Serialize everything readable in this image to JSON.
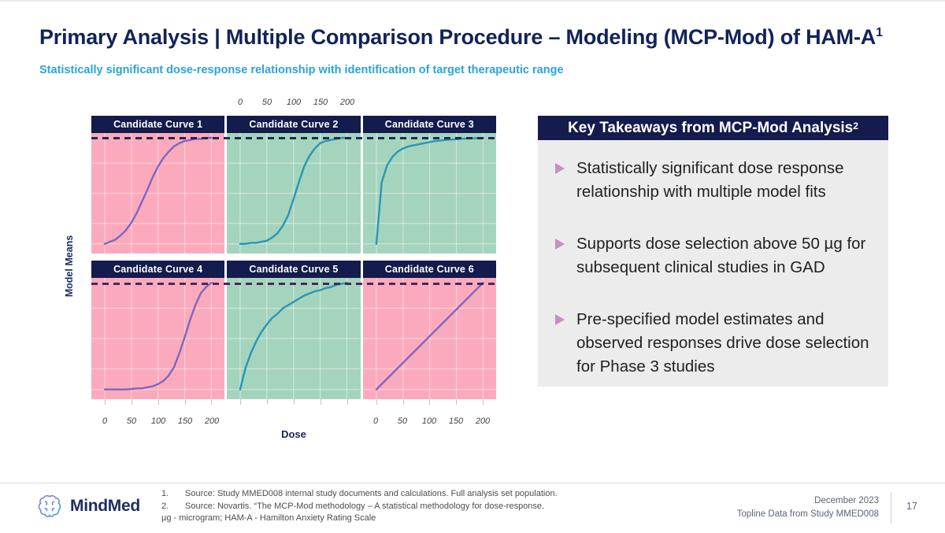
{
  "slide": {
    "title": "Primary Analysis | Multiple Comparison Procedure – Modeling (MCP-Mod) of HAM-A",
    "title_sup": "1",
    "subtitle": "Statistically significant dose-response relationship with identification of target therapeutic range"
  },
  "chart": {
    "y_axis_label": "Model Means",
    "x_axis_label": "Dose",
    "top_axis_ticks": [
      "0",
      "50",
      "100",
      "150",
      "200"
    ],
    "bottom_axis_ticks": [
      "0",
      "50",
      "100",
      "150",
      "200"
    ]
  },
  "chart_data": {
    "type": "line",
    "layout": "2x3_faceted_panels",
    "title": "",
    "xlabel": "Dose",
    "ylabel": "Model Means",
    "x_ticks": [
      0,
      50,
      100,
      150,
      200
    ],
    "x": [
      0,
      10,
      20,
      30,
      40,
      50,
      60,
      70,
      80,
      90,
      100,
      110,
      120,
      130,
      140,
      150,
      160,
      170,
      180,
      190,
      200
    ],
    "dashed_reference_line": "top of each panel row (maximum model response)",
    "grid": true,
    "series": [
      {
        "name": "Candidate Curve 1",
        "panel_bg": "#fbaabc",
        "line_color": "#7a68c1",
        "values": [
          0,
          0.02,
          0.04,
          0.08,
          0.13,
          0.2,
          0.29,
          0.4,
          0.51,
          0.63,
          0.73,
          0.81,
          0.87,
          0.92,
          0.95,
          0.97,
          0.98,
          0.99,
          0.99,
          1,
          1
        ]
      },
      {
        "name": "Candidate Curve 2",
        "panel_bg": "#a5d4bd",
        "line_color": "#2a96b5",
        "values": [
          0,
          0,
          0.01,
          0.01,
          0.02,
          0.03,
          0.06,
          0.1,
          0.17,
          0.27,
          0.42,
          0.58,
          0.73,
          0.83,
          0.9,
          0.95,
          0.97,
          0.98,
          0.99,
          1,
          1
        ]
      },
      {
        "name": "Candidate Curve 3",
        "panel_bg": "#a5d4bd",
        "line_color": "#2a96b5",
        "values": [
          0,
          0.58,
          0.74,
          0.82,
          0.87,
          0.9,
          0.92,
          0.93,
          0.94,
          0.95,
          0.96,
          0.97,
          0.975,
          0.98,
          0.984,
          0.988,
          0.991,
          0.994,
          0.996,
          0.998,
          1
        ]
      },
      {
        "name": "Candidate Curve 4",
        "panel_bg": "#fbaabc",
        "line_color": "#7a68c1",
        "values": [
          0,
          0,
          0,
          0,
          0,
          0.005,
          0.01,
          0.01,
          0.02,
          0.03,
          0.05,
          0.08,
          0.13,
          0.21,
          0.34,
          0.49,
          0.65,
          0.79,
          0.9,
          0.96,
          1
        ]
      },
      {
        "name": "Candidate Curve 5",
        "panel_bg": "#a5d4bd",
        "line_color": "#2a96b5",
        "values": [
          0,
          0.2,
          0.34,
          0.45,
          0.54,
          0.61,
          0.67,
          0.71,
          0.76,
          0.79,
          0.82,
          0.85,
          0.88,
          0.9,
          0.92,
          0.93,
          0.95,
          0.96,
          0.98,
          0.99,
          1
        ]
      },
      {
        "name": "Candidate Curve 6",
        "panel_bg": "#fbaabc",
        "line_color": "#7a68c1",
        "values": [
          0,
          0.05,
          0.1,
          0.15,
          0.2,
          0.25,
          0.3,
          0.35,
          0.4,
          0.45,
          0.5,
          0.55,
          0.6,
          0.65,
          0.7,
          0.75,
          0.8,
          0.85,
          0.9,
          0.95,
          1
        ]
      }
    ]
  },
  "takeaways": {
    "header": "Key Takeaways from MCP-Mod Analysis",
    "header_sup": "2",
    "bullets": [
      "Statistically significant dose response relationship with multiple model fits",
      "Supports dose selection above 50 µg for subsequent clinical studies in GAD",
      "Pre-specified model estimates and observed responses drive dose selection for Phase 3 studies"
    ]
  },
  "footer": {
    "logo_text": "MindMed",
    "footnotes": [
      {
        "num": "1.",
        "text": "Source: Study MMED008 internal study documents and calculations. Full analysis set population."
      },
      {
        "num": "2.",
        "text": "Source: Novartis.  “The MCP-Mod methodology – A statistical methodology for dose-response."
      }
    ],
    "abbreviations": "µg - microgram; HAM-A - Hamilton Anxiety Rating Scale",
    "date_line": "December 2023",
    "project_line": "Topline Data from Study MMED008",
    "page_number": "17"
  },
  "colors": {
    "navy": "#141b4d",
    "accent_blue": "#2aa4d9",
    "panel_pink": "#fbaabc",
    "panel_green": "#a5d4bd",
    "curve_purple": "#7a68c1",
    "curve_teal": "#2a96b5",
    "bullet_plum": "#ca8dc6"
  }
}
